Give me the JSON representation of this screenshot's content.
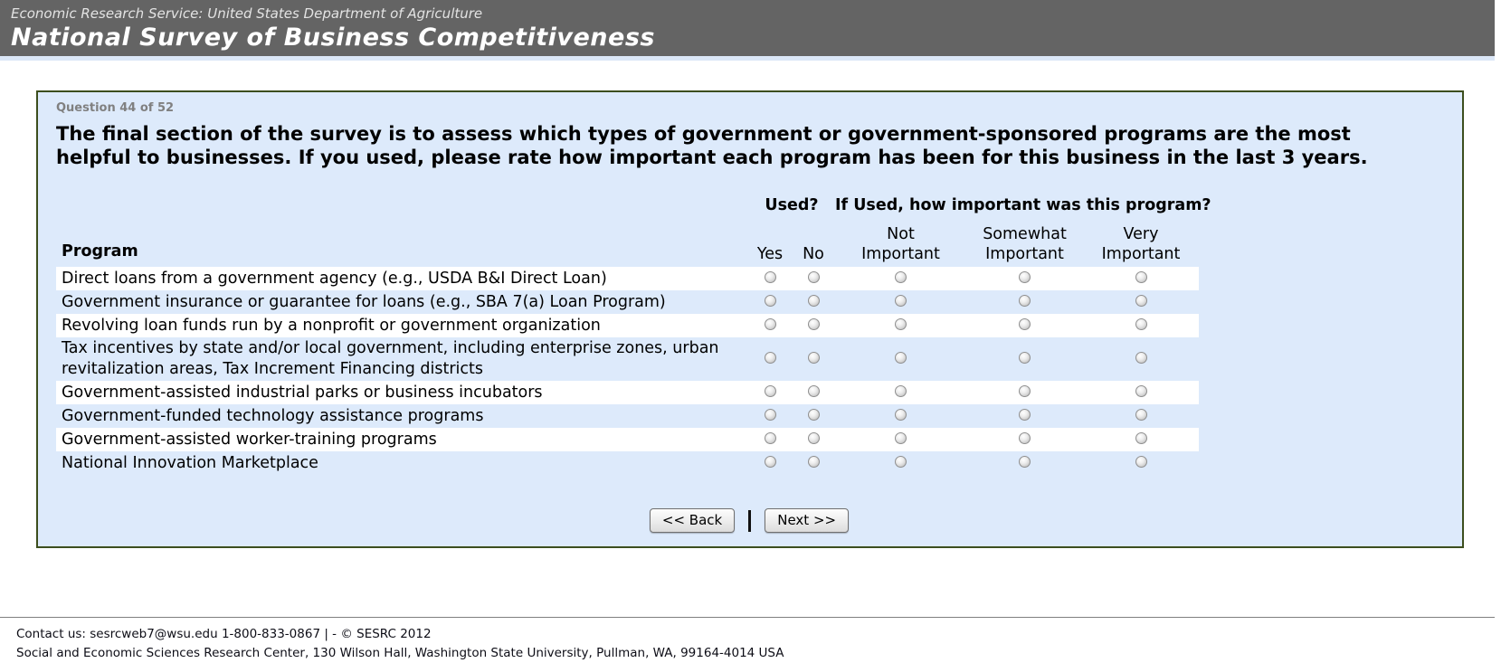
{
  "banner": {
    "agency": "Economic Research Service: United States Department of Agriculture",
    "title": "National Survey of Business Competitiveness"
  },
  "question": {
    "progress": "Question 44 of 52",
    "text": "The final section of the survey is to assess which types of government or government-sponsored programs are the most helpful to businesses. If you used, please rate how important each program has been for this business in the last 3 years."
  },
  "table": {
    "program_header": "Program",
    "used_header": "Used?",
    "importance_header": "If Used, how important was this program?",
    "columns": [
      {
        "id": "yes",
        "label": "Yes"
      },
      {
        "id": "no",
        "label": "No"
      },
      {
        "id": "not-important",
        "label": "Not\nImportant"
      },
      {
        "id": "somewhat-important",
        "label": "Somewhat\nImportant"
      },
      {
        "id": "very-important",
        "label": "Very\nImportant"
      }
    ],
    "rows": [
      "Direct loans from a government agency (e.g., USDA B&I Direct Loan)",
      "Government insurance or guarantee for loans (e.g., SBA 7(a) Loan Program)",
      "Revolving loan funds run by a nonprofit or government organization",
      "Tax incentives by state and/or local government, including enterprise zones, urban revitalization areas, Tax Increment Financing districts",
      "Government-assisted industrial parks or business incubators",
      "Government-funded technology assistance programs",
      "Government-assisted worker-training programs",
      "National Innovation Marketplace"
    ]
  },
  "buttons": {
    "back": "<< Back",
    "next": "Next >>"
  },
  "footer": {
    "line1": "Contact us: sesrcweb7@wsu.edu 1-800-833-0867 | - © SESRC 2012",
    "line2": "Social and Economic Sciences Research Center, 130 Wilson Hall, Washington State University, Pullman, WA, 99164-4014 USA"
  },
  "colors": {
    "banner_bg": "#646464",
    "box_bg": "#ddeafb",
    "box_border": "#3c4e1e",
    "stripe_white": "#ffffff",
    "strip_blue": "#dbe7f7"
  }
}
